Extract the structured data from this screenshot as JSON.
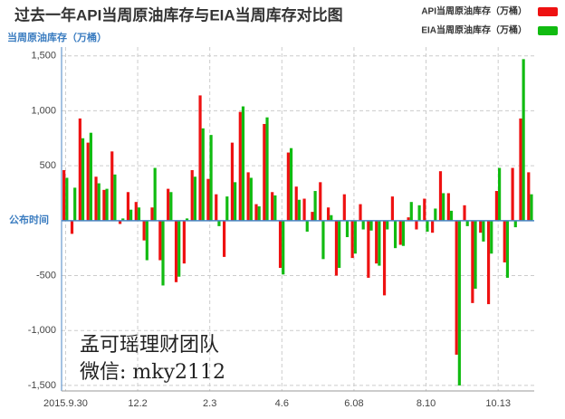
{
  "chart_data": {
    "type": "bar",
    "title": "过去一年API当周原油库存与EIA当周库存对比图",
    "y_label": "当周原油库存（万桶）",
    "x_label": "公布时间",
    "annotations": [
      "孟可瑶理财团队",
      "微信: mky2112"
    ],
    "categories": [
      "2015.9.30",
      null,
      null,
      null,
      null,
      null,
      null,
      null,
      null,
      "12.2",
      null,
      null,
      null,
      null,
      null,
      null,
      null,
      null,
      "2.3",
      null,
      null,
      null,
      null,
      null,
      null,
      null,
      null,
      "4.6",
      null,
      null,
      null,
      null,
      null,
      null,
      null,
      null,
      "6.08",
      null,
      null,
      null,
      null,
      null,
      null,
      null,
      null,
      "8.10",
      null,
      null,
      null,
      null,
      null,
      null,
      null,
      null,
      "10.13",
      null,
      null,
      null,
      null
    ],
    "series": [
      {
        "name": "API当周原油库存（万桶）",
        "color": "#ee1111",
        "values": [
          460,
          -120,
          930,
          710,
          400,
          280,
          630,
          -30,
          260,
          170,
          -180,
          120,
          -360,
          290,
          -560,
          -390,
          460,
          1140,
          380,
          240,
          -330,
          710,
          990,
          440,
          150,
          880,
          260,
          -430,
          620,
          310,
          200,
          80,
          350,
          120,
          -500,
          240,
          -340,
          150,
          -520,
          -390,
          -680,
          220,
          -220,
          30,
          -80,
          200,
          -110,
          450,
          250,
          -1220,
          140,
          -750,
          -110,
          -760,
          270,
          -380,
          480,
          930,
          440
        ]
      },
      {
        "name": "EIA当周原油库存（万桶）",
        "color": "#11bb11",
        "values": [
          390,
          300,
          750,
          800,
          340,
          290,
          420,
          20,
          100,
          120,
          -360,
          480,
          -590,
          260,
          -510,
          20,
          400,
          840,
          780,
          -50,
          220,
          350,
          1040,
          390,
          130,
          940,
          230,
          -490,
          660,
          190,
          -100,
          270,
          -350,
          50,
          -430,
          -150,
          -300,
          -80,
          -90,
          -410,
          -80,
          -250,
          -230,
          170,
          140,
          -100,
          110,
          250,
          90,
          -1500,
          -50,
          -620,
          -190,
          -300,
          480,
          -520,
          -60,
          1470,
          240
        ]
      }
    ],
    "ylim": [
      -1550,
      1580
    ],
    "yticks": [
      {
        "value": -1500,
        "label": "-1,500"
      },
      {
        "value": -1000,
        "label": "-1,000"
      },
      -500,
      500,
      {
        "value": 1000,
        "label": "1,000"
      },
      {
        "value": 1500,
        "label": "1,500"
      }
    ],
    "grid": true,
    "legend": "top-right"
  }
}
